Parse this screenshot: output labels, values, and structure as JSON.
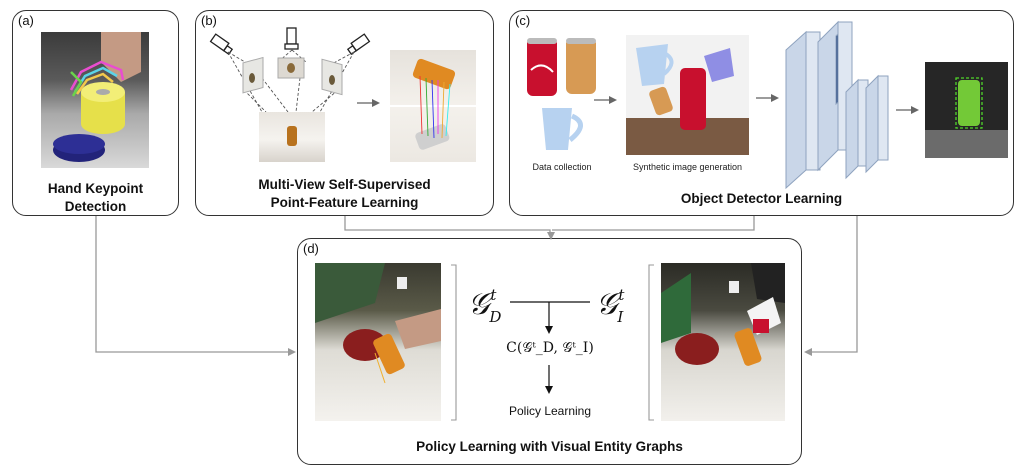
{
  "panels": {
    "a": {
      "tag": "(a)",
      "title_line1": "Hand Keypoint",
      "title_line2": "Detection"
    },
    "b": {
      "tag": "(b)",
      "title_line1": "Multi-View Self-Supervised",
      "title_line2": "Point-Feature Learning"
    },
    "c": {
      "tag": "(c)",
      "title": "Object Detector Learning",
      "caption_data": "Data collection",
      "caption_synth": "Synthetic image generation"
    },
    "d": {
      "tag": "(d)",
      "title": "Policy Learning with Visual Entity Graphs",
      "graph_demo": "𝒢",
      "graph_demo_sup": "t",
      "graph_demo_sub": "D",
      "graph_img": "𝒢",
      "graph_img_sup": "t",
      "graph_img_sub": "I",
      "cost": "C(𝒢ᵗ_D, 𝒢ᵗ_I)",
      "policy": "Policy Learning"
    }
  },
  "colors": {
    "border": "#333333",
    "arrow": "#999999",
    "cola_red": "#c8102e",
    "mug_blue": "#a9c9ee",
    "layer_fill": "#dfe7f2",
    "layer_dark": "#1d3f78",
    "detect_green": "#7cdc3a"
  }
}
